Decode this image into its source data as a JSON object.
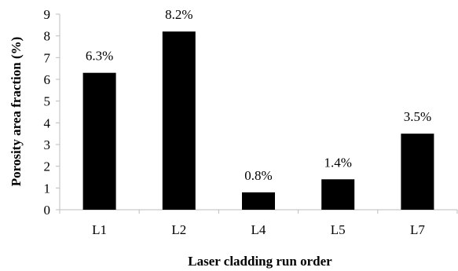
{
  "chart_data": {
    "type": "bar",
    "title": "",
    "xlabel": "Laser cladding run order",
    "ylabel": "Porosity area fraction (%)",
    "categories": [
      "L1",
      "L2",
      "L4",
      "L5",
      "L7"
    ],
    "values": [
      6.3,
      8.2,
      0.8,
      1.4,
      3.5
    ],
    "data_labels": [
      "6.3%",
      "8.2%",
      "0.8%",
      "1.4%",
      "3.5%"
    ],
    "ylim": [
      0,
      9
    ],
    "yticks": [
      "0",
      "1",
      "2",
      "3",
      "4",
      "5",
      "6",
      "7",
      "8",
      "9"
    ],
    "bar_color": "#000000",
    "grid": false,
    "legend": "none"
  }
}
